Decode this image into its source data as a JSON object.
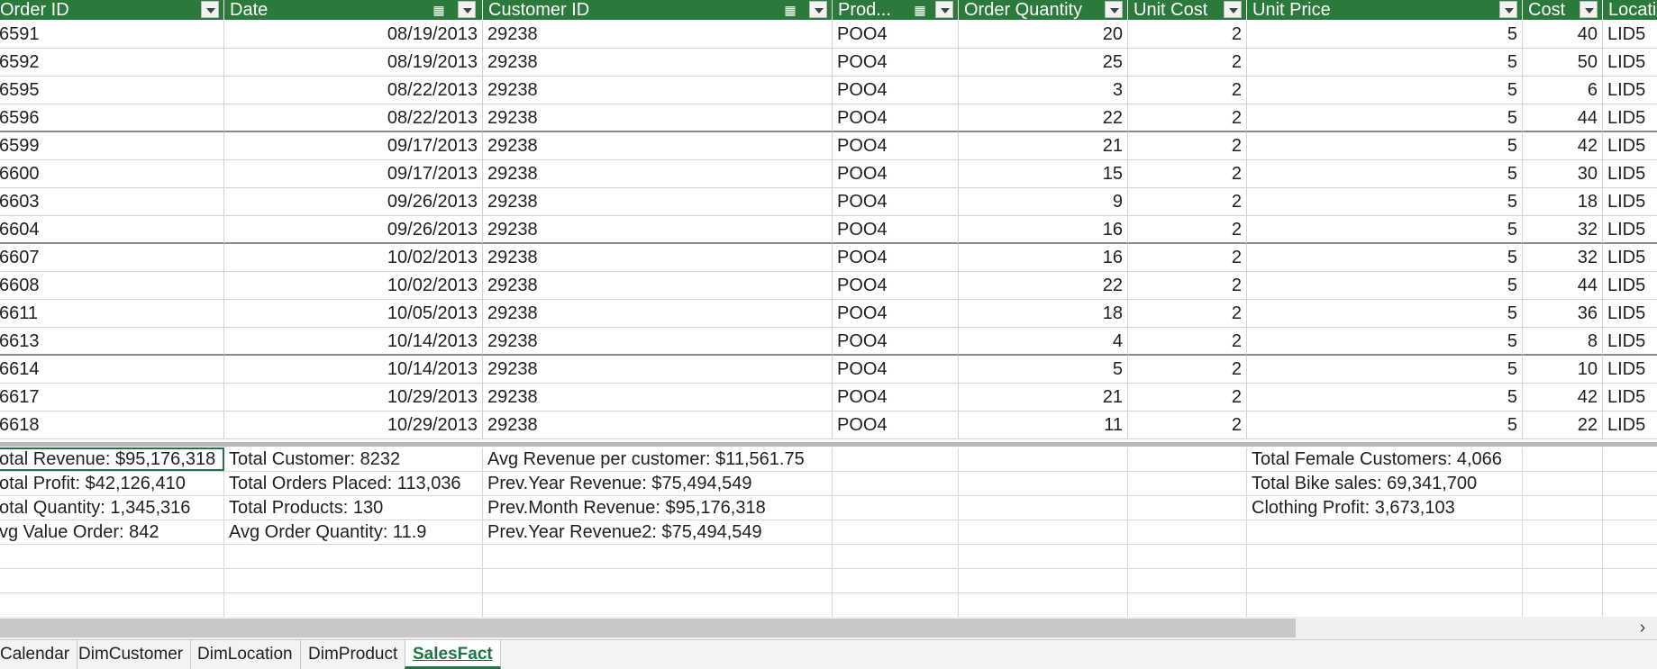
{
  "headers": [
    {
      "label": "Order ID"
    },
    {
      "label": "Date"
    },
    {
      "label": "Customer ID"
    },
    {
      "label": "Prod..."
    },
    {
      "label": "Order Quantity"
    },
    {
      "label": "Unit Cost"
    },
    {
      "label": "Unit Price"
    },
    {
      "label": "Cost"
    },
    {
      "label": "Locati"
    }
  ],
  "rows": [
    [
      "6591",
      "08/19/2013",
      "29238",
      "POO4",
      "20",
      "2",
      "5",
      "40",
      "LID5"
    ],
    [
      "6592",
      "08/19/2013",
      "29238",
      "POO4",
      "25",
      "2",
      "5",
      "50",
      "LID5"
    ],
    [
      "6595",
      "08/22/2013",
      "29238",
      "POO4",
      "3",
      "2",
      "5",
      "6",
      "LID5"
    ],
    [
      "6596",
      "08/22/2013",
      "29238",
      "POO4",
      "22",
      "2",
      "5",
      "44",
      "LID5"
    ],
    [
      "6599",
      "09/17/2013",
      "29238",
      "POO4",
      "21",
      "2",
      "5",
      "42",
      "LID5"
    ],
    [
      "6600",
      "09/17/2013",
      "29238",
      "POO4",
      "15",
      "2",
      "5",
      "30",
      "LID5"
    ],
    [
      "6603",
      "09/26/2013",
      "29238",
      "POO4",
      "9",
      "2",
      "5",
      "18",
      "LID5"
    ],
    [
      "6604",
      "09/26/2013",
      "29238",
      "POO4",
      "16",
      "2",
      "5",
      "32",
      "LID5"
    ],
    [
      "6607",
      "10/02/2013",
      "29238",
      "POO4",
      "16",
      "2",
      "5",
      "32",
      "LID5"
    ],
    [
      "6608",
      "10/02/2013",
      "29238",
      "POO4",
      "22",
      "2",
      "5",
      "44",
      "LID5"
    ],
    [
      "6611",
      "10/05/2013",
      "29238",
      "POO4",
      "18",
      "2",
      "5",
      "36",
      "LID5"
    ],
    [
      "6613",
      "10/14/2013",
      "29238",
      "POO4",
      "4",
      "2",
      "5",
      "8",
      "LID5"
    ],
    [
      "6614",
      "10/14/2013",
      "29238",
      "POO4",
      "5",
      "2",
      "5",
      "10",
      "LID5"
    ],
    [
      "6617",
      "10/29/2013",
      "29238",
      "POO4",
      "21",
      "2",
      "5",
      "42",
      "LID5"
    ],
    [
      "6618",
      "10/29/2013",
      "29238",
      "POO4",
      "11",
      "2",
      "5",
      "22",
      "LID5"
    ]
  ],
  "measures": [
    [
      "otal Revenue: $95,176,318",
      "Total Customer: 8232",
      "Avg Revenue per customer: $11,561.75",
      "Total Female Customers: 4,066"
    ],
    [
      "otal Profit: $42,126,410",
      "Total Orders Placed: 113,036",
      "Prev.Year Revenue: $75,494,549",
      "Total Bike sales: 69,341,700"
    ],
    [
      "otal Quantity: 1,345,316",
      "Total Products: 130",
      "Prev.Month Revenue: $95,176,318",
      "Clothing Profit: 3,673,103"
    ],
    [
      "vg Value Order: 842",
      "Avg Order Quantity: 11.9",
      "Prev.Year Revenue2: $75,494,549",
      ""
    ]
  ],
  "sheet_tabs": [
    "Calendar",
    "DimCustomer",
    "DimLocation",
    "DimProduct",
    "SalesFact"
  ],
  "active_tab": "SalesFact",
  "icons": {
    "filter_dropdown": "chevron-down-icon",
    "slicer": "slicer-icon",
    "scroll_right": "chevron-right-icon"
  },
  "colors": {
    "header_bg": "#2b7a3b",
    "active_tab": "#217346"
  }
}
